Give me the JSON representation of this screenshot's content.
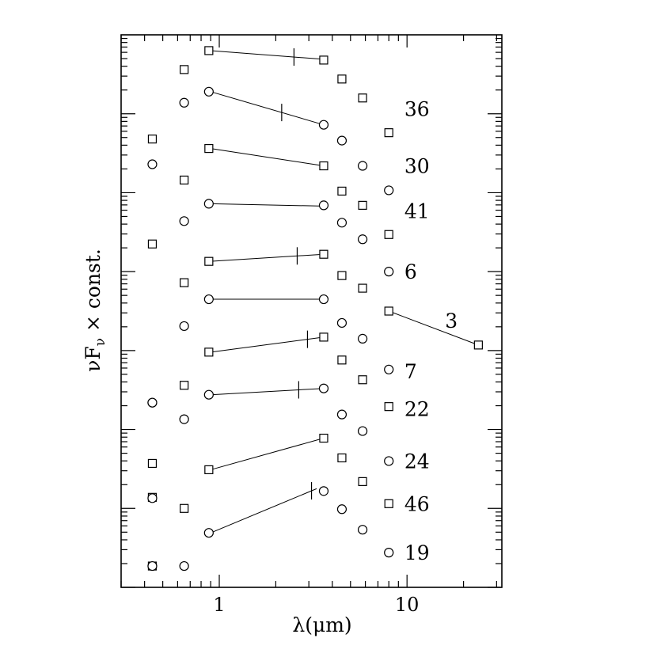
{
  "chart_data": {
    "type": "scatter",
    "title": "",
    "xlabel": "λ(μm)",
    "ylabel": "νF_ν × const.",
    "ylabel_parts": {
      "nu": "ν",
      "F": "F",
      "sub": "ν",
      "rest": " × const."
    },
    "xscale": "log",
    "yscale": "log",
    "xlim": [
      0.3,
      32
    ],
    "ylim_decades": [
      0,
      7
    ],
    "x_tick_labels": [
      {
        "value": 1,
        "label": "1"
      },
      {
        "value": 10,
        "label": "10"
      }
    ],
    "y_tick_labels": [],
    "grid": false,
    "legend": "none",
    "series": [
      {
        "name": "36",
        "marker": "square",
        "label_x": 7.9,
        "label_y": 6.06,
        "points": [
          [
            0.44,
            5.68
          ],
          [
            0.65,
            6.56
          ],
          [
            0.88,
            6.8
          ],
          [
            3.6,
            6.68
          ],
          [
            4.5,
            6.44
          ],
          [
            5.8,
            6.2
          ],
          [
            8.0,
            5.76
          ]
        ],
        "fit": [
          [
            0.9,
            6.8
          ],
          [
            3.6,
            6.69
          ]
        ],
        "tick_x": 2.5
      },
      {
        "name": "30",
        "marker": "circle",
        "label_x": 7.9,
        "label_y": 5.34,
        "points": [
          [
            0.44,
            5.36
          ],
          [
            0.65,
            6.14
          ],
          [
            0.88,
            6.28
          ],
          [
            3.6,
            5.86
          ],
          [
            4.5,
            5.66
          ],
          [
            5.8,
            5.34
          ],
          [
            8.0,
            5.03
          ]
        ],
        "fit": [
          [
            0.9,
            6.28
          ],
          [
            3.6,
            5.86
          ]
        ],
        "tick_x": 2.15
      },
      {
        "name": "41",
        "marker": "square",
        "label_x": 7.9,
        "label_y": 4.77,
        "points": [
          [
            0.44,
            4.35
          ],
          [
            0.65,
            5.16
          ],
          [
            0.88,
            5.56
          ],
          [
            3.6,
            5.34
          ],
          [
            4.5,
            5.02
          ],
          [
            5.8,
            4.84
          ],
          [
            8.0,
            4.47
          ]
        ],
        "fit": [
          [
            0.9,
            5.56
          ],
          [
            3.6,
            5.34
          ]
        ]
      },
      {
        "name": "6",
        "marker": "circle",
        "label_x": 7.9,
        "label_y": 4.0,
        "points": [
          [
            0.44,
            2.34
          ],
          [
            0.65,
            4.64
          ],
          [
            0.88,
            4.86
          ],
          [
            3.6,
            4.84
          ],
          [
            4.5,
            4.62
          ],
          [
            5.8,
            4.41
          ],
          [
            8.0,
            4.0
          ]
        ],
        "fit": [
          [
            0.9,
            4.86
          ],
          [
            3.6,
            4.83
          ]
        ]
      },
      {
        "name": "3",
        "marker": "square",
        "label_x": 13.0,
        "label_y": 3.38,
        "points": [
          [
            0.44,
            1.57
          ],
          [
            0.65,
            3.86
          ],
          [
            0.88,
            4.13
          ],
          [
            3.6,
            4.22
          ],
          [
            4.5,
            3.95
          ],
          [
            5.8,
            3.79
          ],
          [
            8.0,
            3.5
          ],
          [
            24.0,
            3.07
          ]
        ],
        "fit": [
          [
            0.9,
            4.13
          ],
          [
            3.6,
            4.22
          ]
        ],
        "tick_x": 2.6,
        "extra_fit": [
          [
            8.0,
            3.5
          ],
          [
            24.0,
            3.07
          ]
        ]
      },
      {
        "name": "7",
        "marker": "circle",
        "label_x": 7.9,
        "label_y": 2.74,
        "points": [
          [
            0.44,
            2.34
          ],
          [
            0.65,
            3.31
          ],
          [
            0.88,
            3.65
          ],
          [
            3.6,
            3.65
          ],
          [
            4.5,
            3.35
          ],
          [
            5.8,
            3.15
          ],
          [
            8.0,
            2.76
          ]
        ],
        "fit": [
          [
            0.9,
            3.65
          ],
          [
            3.6,
            3.65
          ]
        ]
      },
      {
        "name": "22",
        "marker": "square",
        "label_x": 7.9,
        "label_y": 2.26,
        "points": [
          [
            0.44,
            1.14
          ],
          [
            0.65,
            2.56
          ],
          [
            0.88,
            2.98
          ],
          [
            3.6,
            3.17
          ],
          [
            4.5,
            2.88
          ],
          [
            5.8,
            2.63
          ],
          [
            8.0,
            2.29
          ]
        ],
        "fit": [
          [
            0.9,
            2.98
          ],
          [
            3.6,
            3.17
          ]
        ],
        "tick_x": 2.95
      },
      {
        "name": "24",
        "marker": "circle",
        "label_x": 7.9,
        "label_y": 1.6,
        "points": [
          [
            0.44,
            1.13
          ],
          [
            0.65,
            2.13
          ],
          [
            0.88,
            2.44
          ],
          [
            3.6,
            2.52
          ],
          [
            4.5,
            2.19
          ],
          [
            5.8,
            1.98
          ],
          [
            8.0,
            1.6
          ]
        ],
        "fit": [
          [
            0.9,
            2.44
          ],
          [
            3.6,
            2.52
          ]
        ],
        "tick_x": 2.65
      },
      {
        "name": "46",
        "marker": "square",
        "label_x": 7.9,
        "label_y": 1.06,
        "points": [
          [
            0.44,
            0.27
          ],
          [
            0.65,
            1.0
          ],
          [
            0.88,
            1.49
          ],
          [
            3.6,
            1.89
          ],
          [
            4.5,
            1.64
          ],
          [
            5.8,
            1.34
          ],
          [
            8.0,
            1.06
          ]
        ],
        "fit": [
          [
            0.9,
            1.49
          ],
          [
            3.6,
            1.89
          ]
        ]
      },
      {
        "name": "19",
        "marker": "circle",
        "label_x": 7.9,
        "label_y": 0.44,
        "points": [
          [
            0.44,
            0.27
          ],
          [
            0.65,
            0.27
          ],
          [
            0.88,
            0.69
          ],
          [
            3.6,
            1.22
          ],
          [
            4.5,
            0.99
          ],
          [
            5.8,
            0.73
          ],
          [
            8.0,
            0.44
          ]
        ],
        "fit": [
          [
            0.9,
            0.69
          ],
          [
            3.3,
            1.25
          ]
        ],
        "tick_x": 3.1
      }
    ]
  }
}
